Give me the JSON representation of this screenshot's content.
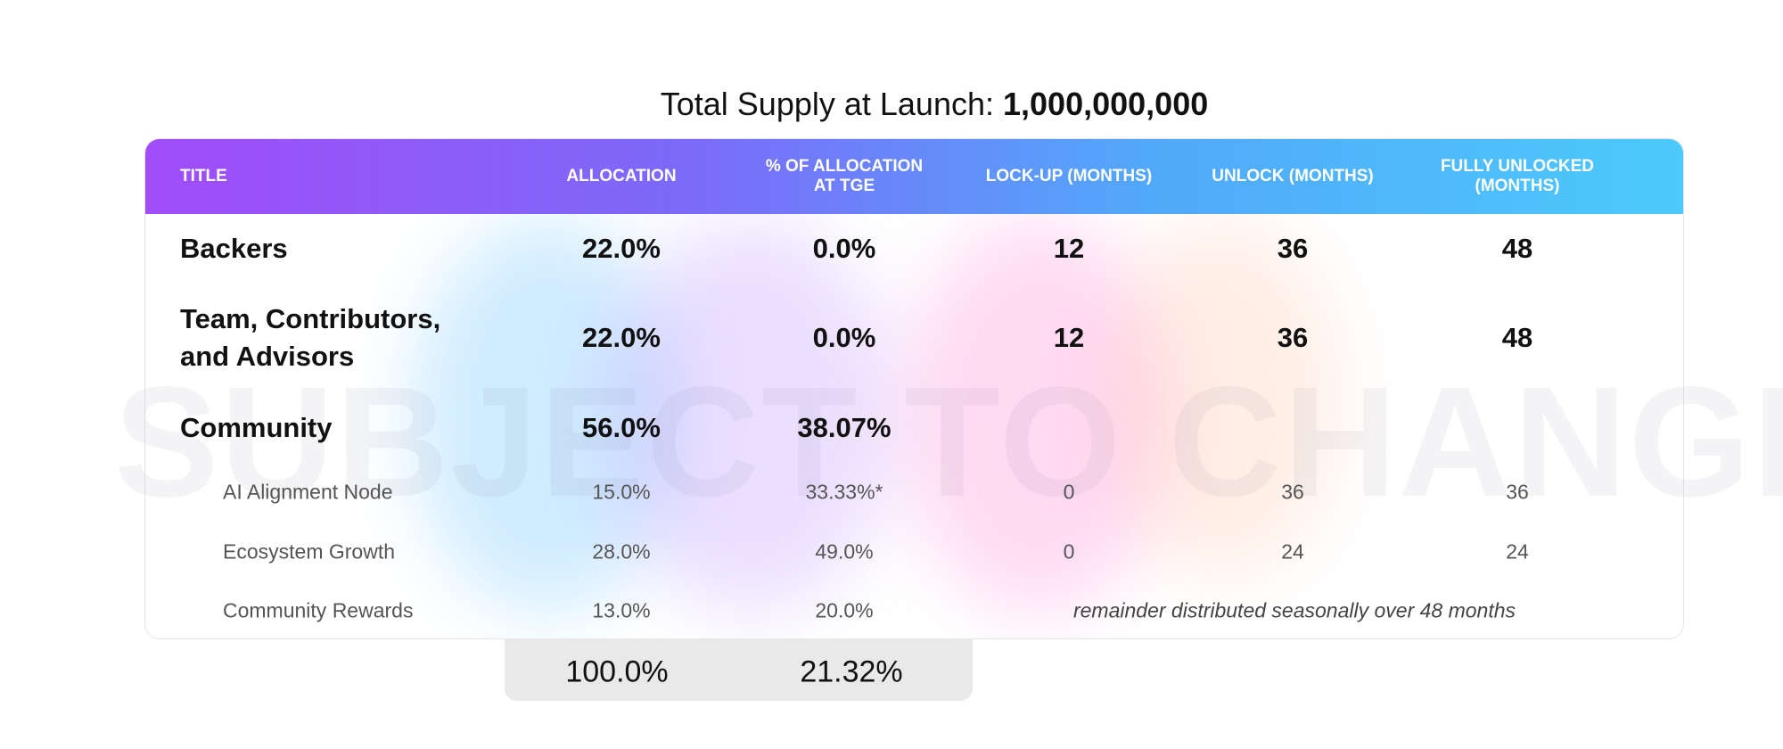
{
  "title": {
    "label": "Total Supply at Launch:",
    "value": "1,000,000,000"
  },
  "watermark": "SUBJECT TO CHANGE",
  "columns": [
    "TITLE",
    "ALLOCATION",
    "% OF ALLOCATION AT TGE",
    "LOCK-UP (MONTHS)",
    "UNLOCK (MONTHS)",
    "FULLY UNLOCKED (MONTHS)"
  ],
  "rows": [
    {
      "title": "Backers",
      "allocation": "22.0%",
      "tge": "0.0%",
      "lockup": "12",
      "unlock": "36",
      "full": "48"
    },
    {
      "title": "Team, Contributors, and Advisors",
      "allocation": "22.0%",
      "tge": "0.0%",
      "lockup": "12",
      "unlock": "36",
      "full": "48"
    },
    {
      "title": "Community",
      "allocation": "56.0%",
      "tge": "38.07%"
    }
  ],
  "subrows": [
    {
      "title": "AI Alignment Node",
      "allocation": "15.0%",
      "tge": "33.33%*",
      "lockup": "0",
      "unlock": "36",
      "full": "36"
    },
    {
      "title": "Ecosystem Growth",
      "allocation": "28.0%",
      "tge": "49.0%",
      "lockup": "0",
      "unlock": "24",
      "full": "24"
    },
    {
      "title": "Community Rewards",
      "allocation": "13.0%",
      "tge": "20.0%",
      "note": "remainder distributed seasonally over 48 months"
    }
  ],
  "totals": {
    "allocation": "100.0%",
    "tge": "21.32%"
  },
  "colors": {
    "header_start": "#a14cf8",
    "header_end": "#4ccafb"
  }
}
